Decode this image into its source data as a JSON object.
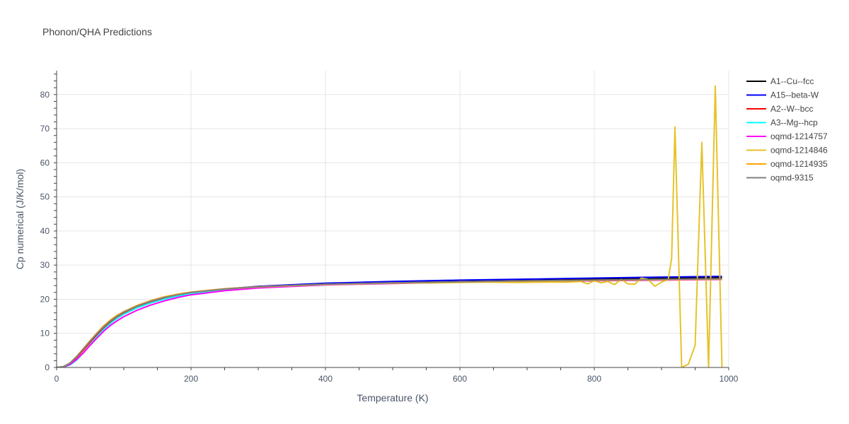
{
  "chart_data": {
    "type": "line",
    "title": "Phonon/QHA Predictions",
    "xlabel": "Temperature (K)",
    "ylabel": "Cp numerical (J/K/mol)",
    "xlim": [
      0,
      1000
    ],
    "ylim": [
      0,
      87
    ],
    "xticks": [
      0,
      200,
      400,
      600,
      800,
      1000
    ],
    "yticks": [
      0,
      10,
      20,
      30,
      40,
      50,
      60,
      70,
      80
    ],
    "grid": true,
    "legend_position": "right",
    "series": [
      {
        "name": "A1--Cu--fcc",
        "color": "#000000",
        "x": [
          0,
          10,
          20,
          30,
          40,
          50,
          60,
          70,
          80,
          90,
          100,
          120,
          140,
          160,
          180,
          200,
          250,
          300,
          400,
          500,
          600,
          700,
          800,
          900,
          990
        ],
        "y": [
          0,
          0.2,
          1.3,
          3.2,
          5.4,
          7.7,
          9.9,
          12.0,
          13.6,
          15.0,
          16.1,
          17.9,
          19.3,
          20.4,
          21.2,
          21.9,
          23.0,
          23.7,
          24.5,
          24.9,
          25.2,
          25.5,
          25.8,
          26.1,
          26.3
        ]
      },
      {
        "name": "A15--beta-W",
        "color": "#0000ff",
        "x": [
          0,
          10,
          20,
          30,
          40,
          50,
          60,
          70,
          80,
          90,
          100,
          120,
          140,
          160,
          180,
          200,
          250,
          300,
          400,
          500,
          600,
          700,
          800,
          900,
          990
        ],
        "y": [
          0,
          0.2,
          1.2,
          3.0,
          5.2,
          7.5,
          9.7,
          11.7,
          13.4,
          14.8,
          16.0,
          17.8,
          19.2,
          20.3,
          21.2,
          21.9,
          23.0,
          23.8,
          24.7,
          25.2,
          25.6,
          25.9,
          26.2,
          26.5,
          26.7
        ]
      },
      {
        "name": "A2--W--bcc",
        "color": "#ff0000",
        "x": [
          0,
          10,
          20,
          30,
          40,
          50,
          60,
          70,
          80,
          90,
          100,
          120,
          140,
          160,
          180,
          200,
          250,
          300,
          400,
          500,
          600,
          700,
          800,
          900,
          990
        ],
        "y": [
          0,
          0.2,
          1.2,
          3.0,
          5.1,
          7.4,
          9.6,
          11.6,
          13.3,
          14.7,
          15.9,
          17.7,
          19.1,
          20.2,
          21.1,
          21.8,
          22.9,
          23.6,
          24.4,
          24.8,
          25.1,
          25.4,
          25.6,
          25.8,
          26.0
        ]
      },
      {
        "name": "A3--Mg--hcp",
        "color": "#00ffff",
        "x": [
          0,
          10,
          20,
          30,
          40,
          50,
          60,
          70,
          80,
          90,
          100,
          120,
          140,
          160,
          180,
          200,
          250,
          300,
          400,
          500,
          600,
          700,
          800,
          900,
          990
        ],
        "y": [
          0,
          0.1,
          0.7,
          2.2,
          4.3,
          6.7,
          9.0,
          11.1,
          12.9,
          14.4,
          15.6,
          17.5,
          18.9,
          20.0,
          20.9,
          21.6,
          22.8,
          23.5,
          24.3,
          24.7,
          25.0,
          25.3,
          25.5,
          25.7,
          25.9
        ]
      },
      {
        "name": "oqmd-1214757",
        "color": "#ff00ff",
        "x": [
          0,
          10,
          20,
          30,
          40,
          50,
          60,
          70,
          80,
          90,
          100,
          120,
          140,
          160,
          180,
          200,
          250,
          300,
          400,
          500,
          600,
          700,
          800,
          900,
          990
        ],
        "y": [
          0,
          0.1,
          0.9,
          2.4,
          4.3,
          6.5,
          8.6,
          10.6,
          12.3,
          13.7,
          14.9,
          16.8,
          18.3,
          19.5,
          20.5,
          21.3,
          22.5,
          23.3,
          24.2,
          24.6,
          25.0,
          25.2,
          25.4,
          25.6,
          25.8
        ]
      },
      {
        "name": "oqmd-1214846",
        "color": "#e6c229",
        "x": [
          0,
          10,
          20,
          30,
          40,
          50,
          60,
          70,
          80,
          90,
          100,
          120,
          140,
          160,
          180,
          200,
          250,
          300,
          400,
          500,
          600,
          640,
          680,
          720,
          760,
          780,
          790,
          800,
          810,
          820,
          830,
          840,
          850,
          860,
          870,
          880,
          890,
          900,
          910,
          915,
          920,
          930,
          940,
          950,
          960,
          970,
          980,
          990
        ],
        "y": [
          0,
          0.2,
          1.3,
          3.2,
          5.5,
          7.8,
          10.0,
          12.1,
          13.8,
          15.2,
          16.3,
          18.1,
          19.5,
          20.6,
          21.4,
          22.0,
          23.0,
          23.6,
          24.3,
          24.7,
          24.9,
          25.0,
          24.9,
          25.0,
          25.0,
          25.2,
          24.5,
          25.4,
          24.8,
          25.2,
          24.3,
          25.8,
          24.5,
          24.4,
          26.2,
          25.8,
          23.8,
          25.0,
          25.8,
          32.0,
          70.5,
          0,
          1,
          6.5,
          66,
          0,
          82.5,
          0
        ]
      },
      {
        "name": "oqmd-1214935",
        "color": "#ffa500",
        "x": [
          0,
          10,
          20,
          30,
          40,
          50,
          60,
          70,
          80,
          90,
          100,
          120,
          140,
          160,
          180,
          200,
          250,
          300,
          400,
          500,
          600,
          700,
          800,
          900,
          990
        ],
        "y": [
          0,
          0.2,
          1.3,
          3.3,
          5.6,
          7.9,
          10.1,
          12.2,
          13.9,
          15.3,
          16.4,
          18.2,
          19.6,
          20.7,
          21.5,
          22.1,
          23.1,
          23.7,
          24.4,
          24.8,
          25.1,
          25.3,
          25.5,
          25.7,
          25.9
        ]
      },
      {
        "name": "oqmd-9315",
        "color": "#808080",
        "x": [
          0,
          10,
          20,
          30,
          40,
          50,
          60,
          70,
          80,
          90,
          100,
          120,
          140,
          160,
          180,
          200,
          250,
          300,
          400,
          500,
          600,
          700,
          800,
          900,
          990
        ],
        "y": [
          0,
          0.2,
          1.3,
          3.2,
          5.4,
          7.7,
          9.9,
          11.9,
          13.6,
          15.0,
          16.2,
          18.0,
          19.4,
          20.5,
          21.3,
          22.0,
          23.0,
          23.7,
          24.4,
          24.8,
          25.1,
          25.4,
          25.6,
          25.8,
          26.0
        ]
      }
    ]
  }
}
